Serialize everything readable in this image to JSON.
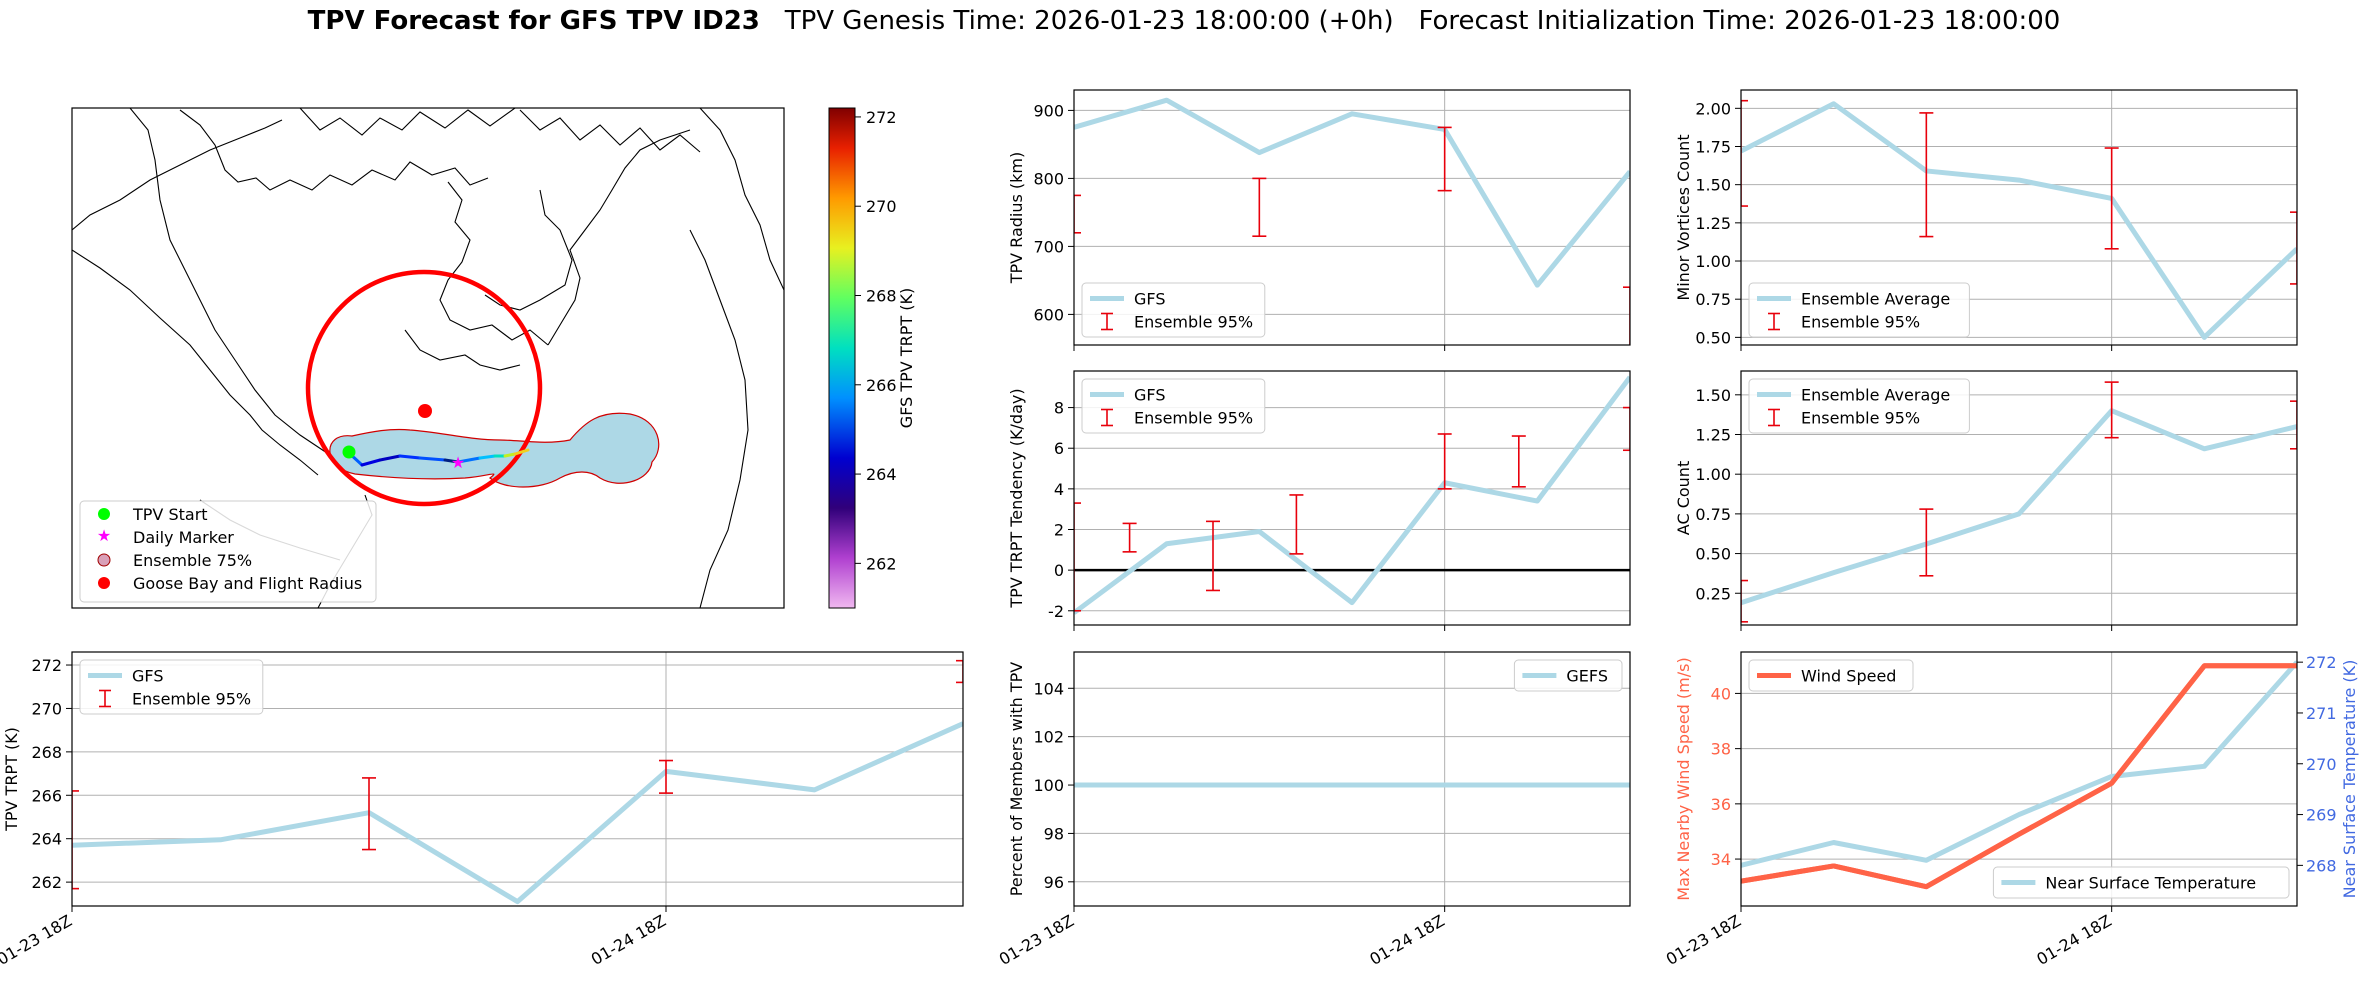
{
  "title": {
    "bold": "TPV Forecast for GFS TPV ID23",
    "genesis": "TPV Genesis Time: 2026-01-23 18:00:00 (+0h)",
    "init": "Forecast Initialization Time: 2026-01-23 18:00:00"
  },
  "colors": {
    "gfs": "#add8e6",
    "ensemble_err": "#e8000b",
    "wind": "#ff6347",
    "temp_axis": "#4169e1",
    "zero_line": "#000000",
    "start_marker": "#00ff00",
    "daily_marker": "#ff00ff",
    "goose_bay": "#ff0000"
  },
  "map": {
    "colorbar": {
      "label": "GFS TPV TRPT (K)",
      "ticks": [
        262,
        264,
        266,
        268,
        270,
        272
      ],
      "range": [
        261,
        272.2
      ]
    },
    "legend": [
      "TPV Start",
      "Daily Marker",
      "Ensemble 75%",
      "Goose Bay and Flight Radius"
    ]
  },
  "chart_data": [
    {
      "id": "radius",
      "type": "line",
      "ylabel": "TPV Radius (km)",
      "ylim": [
        555,
        930
      ],
      "yticks": [
        600,
        700,
        800,
        900
      ],
      "xlim": [
        0,
        1.5
      ],
      "xgrid": [
        1
      ],
      "x": [
        0,
        0.25,
        0.5,
        0.75,
        1.0,
        1.25,
        1.5
      ],
      "series": [
        {
          "name": "GFS",
          "values": [
            875,
            915,
            838,
            895,
            872,
            643,
            810
          ]
        }
      ],
      "errorbars": {
        "name": "Ensemble 95%",
        "x": [
          0,
          0.5,
          1.0,
          1.5
        ],
        "low": [
          720,
          715,
          782,
          553
        ],
        "high": [
          775,
          800,
          875,
          640
        ]
      },
      "legend": [
        "GFS",
        "Ensemble 95%"
      ],
      "legend_loc": "lower left"
    },
    {
      "id": "minor",
      "type": "line",
      "ylabel": "Minor Vortices Count",
      "ylim": [
        0.45,
        2.12
      ],
      "yticks": [
        0.5,
        0.75,
        1.0,
        1.25,
        1.5,
        1.75,
        2.0
      ],
      "yticklabels": [
        "0.50",
        "0.75",
        "1.00",
        "1.25",
        "1.50",
        "1.75",
        "2.00"
      ],
      "xlim": [
        0,
        1.5
      ],
      "xgrid": [
        1
      ],
      "x": [
        0,
        0.25,
        0.5,
        0.75,
        1.0,
        1.25,
        1.5
      ],
      "series": [
        {
          "name": "Ensemble Average",
          "values": [
            1.72,
            2.03,
            1.59,
            1.53,
            1.41,
            0.5,
            1.08
          ]
        }
      ],
      "errorbars": {
        "name": "Ensemble 95%",
        "x": [
          0,
          0.5,
          1.0,
          1.5
        ],
        "low": [
          1.36,
          1.16,
          1.08,
          0.85
        ],
        "high": [
          2.05,
          1.97,
          1.74,
          1.32
        ]
      },
      "legend": [
        "Ensemble Average",
        "Ensemble 95%"
      ],
      "legend_loc": "lower left"
    },
    {
      "id": "tendency",
      "type": "line",
      "ylabel": "TPV TRPT Tendency (K/day)",
      "ylim": [
        -2.7,
        9.8
      ],
      "yticks": [
        -2,
        0,
        2,
        4,
        6,
        8
      ],
      "xlim": [
        0,
        1.5
      ],
      "xgrid": [
        1
      ],
      "zero_line": true,
      "x": [
        0,
        0.25,
        0.5,
        0.75,
        1.0,
        1.25,
        1.5
      ],
      "series": [
        {
          "name": "GFS",
          "values": [
            -2.1,
            1.3,
            1.9,
            -1.6,
            4.3,
            3.4,
            9.5
          ]
        }
      ],
      "errorbars": {
        "name": "Ensemble 95%",
        "x": [
          0,
          0.15,
          0.375,
          0.6,
          1.0,
          1.2,
          1.5
        ],
        "low": [
          -2.0,
          0.9,
          -1.0,
          0.8,
          4.0,
          4.1,
          5.9
        ],
        "high": [
          3.3,
          2.3,
          2.4,
          3.7,
          6.7,
          6.6,
          8.0
        ]
      },
      "legend": [
        "GFS",
        "Ensemble 95%"
      ],
      "legend_loc": "upper left"
    },
    {
      "id": "ac",
      "type": "line",
      "ylabel": "AC Count",
      "ylim": [
        0.05,
        1.65
      ],
      "yticks": [
        0.25,
        0.5,
        0.75,
        1.0,
        1.25,
        1.5
      ],
      "yticklabels": [
        "0.25",
        "0.50",
        "0.75",
        "1.00",
        "1.25",
        "1.50"
      ],
      "xlim": [
        0,
        1.5
      ],
      "xgrid": [
        1
      ],
      "x": [
        0,
        0.25,
        0.5,
        0.75,
        1.0,
        1.25,
        1.5
      ],
      "series": [
        {
          "name": "Ensemble Average",
          "values": [
            0.19,
            0.38,
            0.56,
            0.75,
            1.4,
            1.16,
            1.3
          ]
        }
      ],
      "errorbars": {
        "name": "Ensemble 95%",
        "x": [
          0,
          0.5,
          1.0,
          1.5
        ],
        "low": [
          0.07,
          0.36,
          1.23,
          1.16
        ],
        "high": [
          0.33,
          0.78,
          1.58,
          1.46
        ]
      },
      "legend": [
        "Ensemble Average",
        "Ensemble 95%"
      ],
      "legend_loc": "upper left"
    },
    {
      "id": "trpt",
      "type": "line",
      "ylabel": "TPV TRPT (K)",
      "ylim": [
        260.9,
        272.6
      ],
      "yticks": [
        262,
        264,
        266,
        268,
        270,
        272
      ],
      "xlim": [
        0,
        1.5
      ],
      "xgrid": [
        1
      ],
      "xticklabels": [
        "01-23 18Z",
        "01-24 18Z"
      ],
      "xticks": [
        0,
        1
      ],
      "x": [
        0,
        0.25,
        0.5,
        0.75,
        1.0,
        1.25,
        1.5
      ],
      "series": [
        {
          "name": "GFS",
          "values": [
            263.7,
            263.95,
            265.2,
            261.1,
            267.1,
            266.25,
            269.3
          ]
        }
      ],
      "errorbars": {
        "name": "Ensemble 95%",
        "x": [
          0,
          0.5,
          1.0,
          1.5
        ],
        "low": [
          261.7,
          263.5,
          266.1,
          271.2
        ],
        "high": [
          266.2,
          266.8,
          267.6,
          272.2
        ]
      },
      "legend": [
        "GFS",
        "Ensemble 95%"
      ],
      "legend_loc": "upper left"
    },
    {
      "id": "percent",
      "type": "line",
      "ylabel": "Percent of Members with TPV",
      "ylim": [
        95,
        105.5
      ],
      "yticks": [
        96,
        98,
        100,
        102,
        104
      ],
      "xlim": [
        0,
        1.5
      ],
      "xgrid": [
        1
      ],
      "xticklabels": [
        "01-23 18Z",
        "01-24 18Z"
      ],
      "xticks": [
        0,
        1
      ],
      "x": [
        0,
        1.5
      ],
      "series": [
        {
          "name": "GEFS",
          "values": [
            100,
            100
          ]
        }
      ],
      "legend": [
        "GEFS"
      ],
      "legend_loc": "upper right"
    },
    {
      "id": "wind",
      "type": "line",
      "ylabel": "Max Nearby Wind Speed (m/s)",
      "ylim": [
        32.3,
        41.5
      ],
      "yticks": [
        34,
        36,
        38,
        40
      ],
      "xlim": [
        0,
        1.5
      ],
      "xgrid": [
        1
      ],
      "xticklabels": [
        "01-23 18Z",
        "01-24 18Z"
      ],
      "xticks": [
        0,
        1
      ],
      "x": [
        0,
        0.25,
        0.5,
        0.75,
        1.0,
        1.25,
        1.5
      ],
      "series": [
        {
          "name": "Wind Speed",
          "values": [
            33.2,
            33.75,
            33.0,
            34.9,
            36.75,
            41.0,
            41.0
          ]
        },
        {
          "name": "Near Surface Temperature",
          "values": [
            268.0,
            268.45,
            268.1,
            269.0,
            269.75,
            269.95,
            272.0
          ]
        }
      ],
      "y2label": "Near Surface Temperature (K)",
      "y2lim": [
        267.2,
        272.2
      ],
      "y2ticks": [
        268,
        269,
        270,
        271,
        272
      ],
      "legend": [
        "Wind Speed"
      ],
      "legend2": [
        "Near Surface Temperature"
      ]
    }
  ]
}
